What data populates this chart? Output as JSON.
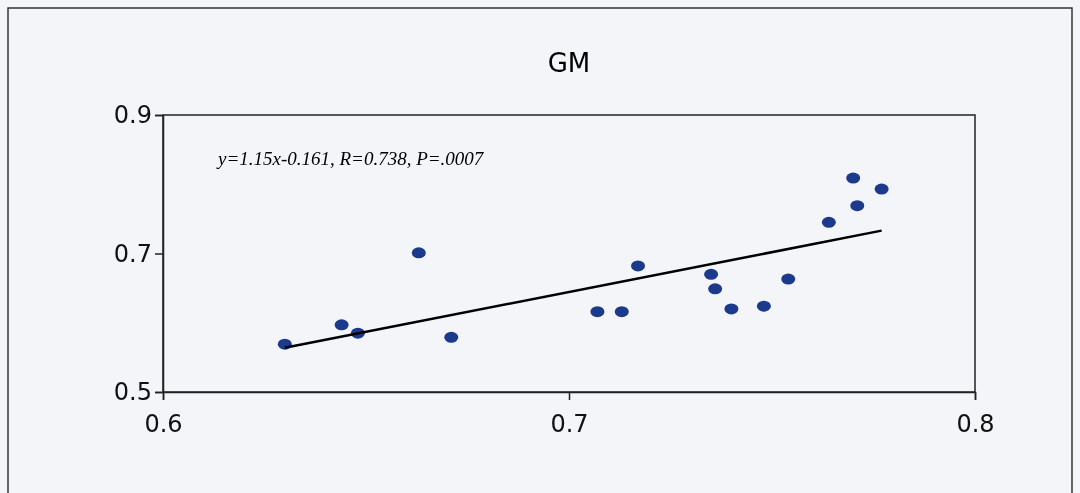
{
  "chart_data": {
    "type": "scatter",
    "title": "GM",
    "xlim": [
      0.6,
      0.8
    ],
    "xticks": [
      0.6,
      0.7,
      0.8
    ],
    "ylim": [
      0.5,
      0.9
    ],
    "yticks": [
      0.5,
      0.7,
      0.9
    ],
    "grid": false,
    "marker": "circle",
    "annotations": [
      "y=1.15x-0.161, R=0.738, P=.0007"
    ],
    "series": [
      {
        "color": "#1c3a8c",
        "x": [
          0.63,
          0.644,
          0.648,
          0.663,
          0.671,
          0.707,
          0.713,
          0.717,
          0.735,
          0.736,
          0.74,
          0.748,
          0.754,
          0.764,
          0.77,
          0.771,
          0.777
        ],
        "values": [
          0.569,
          0.597,
          0.585,
          0.701,
          0.579,
          0.616,
          0.616,
          0.682,
          0.67,
          0.649,
          0.62,
          0.624,
          0.663,
          0.745,
          0.809,
          0.769,
          0.793
        ]
      },
      {
        "type": "line",
        "color": "#000000",
        "marker": "none",
        "line_style": "solid",
        "x": [
          0.63,
          0.777
        ],
        "values": [
          0.564,
          0.733
        ]
      }
    ]
  }
}
